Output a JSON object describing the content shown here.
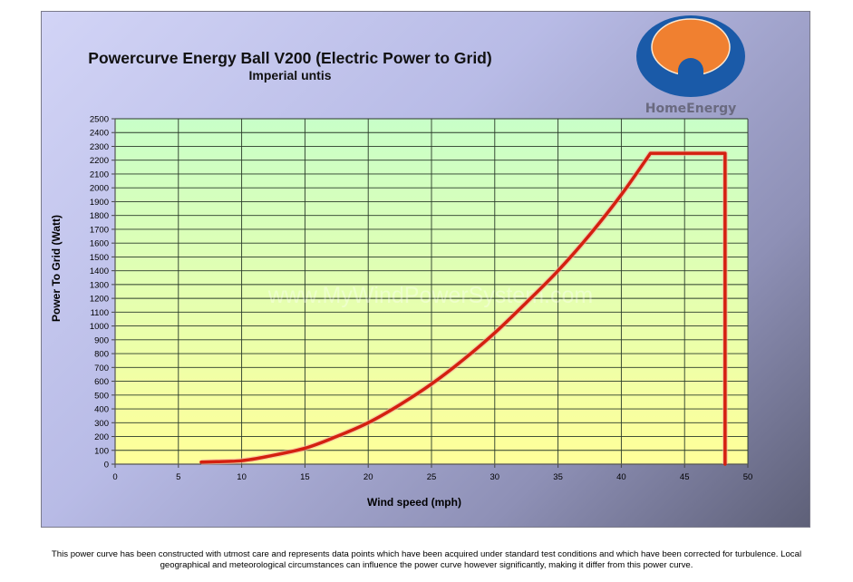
{
  "chart_data": {
    "type": "line",
    "title": "Powercurve Energy Ball V200 (Electric Power to Grid)",
    "subtitle": "Imperial untis",
    "xlabel": "Wind speed  (mph)",
    "ylabel": "Power To Grid (Watt)",
    "xlim": [
      0,
      50
    ],
    "ylim": [
      0,
      2500
    ],
    "xticks": [
      0,
      5,
      10,
      15,
      20,
      25,
      30,
      35,
      40,
      45,
      50
    ],
    "yticks": [
      0,
      100,
      200,
      300,
      400,
      500,
      600,
      700,
      800,
      900,
      1000,
      1100,
      1200,
      1300,
      1400,
      1500,
      1600,
      1700,
      1800,
      1900,
      2000,
      2100,
      2200,
      2300,
      2400,
      2500
    ],
    "grid": true,
    "plot_background": "gradient green (#c8ffc8) top to yellow (#ffff99) bottom",
    "series": [
      {
        "color": "#d42010",
        "x": [
          6.8,
          8,
          10,
          12,
          15,
          17.5,
          20,
          22.5,
          25,
          27.5,
          30,
          32.5,
          35,
          37.5,
          40,
          42.3,
          48.2,
          48.2
        ],
        "y": [
          15,
          18,
          25,
          55,
          115,
          200,
          300,
          430,
          580,
          755,
          950,
          1170,
          1400,
          1660,
          1950,
          2250,
          2250,
          0
        ]
      }
    ]
  },
  "logo": {
    "text": "HomeEnergy",
    "colors": {
      "ring": "#1a5aa8",
      "center": "#f08030",
      "text": "#6a6a80"
    }
  },
  "watermark": "www.MyWindPowerSystem.com",
  "footer": {
    "line1": "This power curve has been constructed with utmost care and represents data points which have been acquired under standard test conditions and which have been corrected for turbulence. Local",
    "line2": "geographical and meteorological circumstances can influence the power curve however significantly, making it differ from this power curve."
  }
}
